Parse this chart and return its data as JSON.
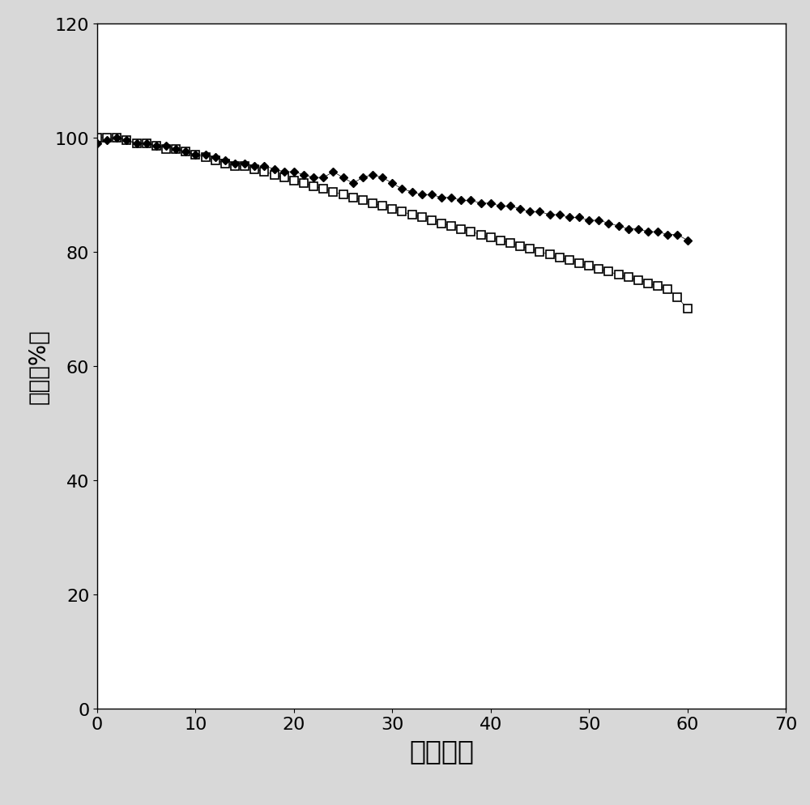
{
  "title": "",
  "xlabel": "循环次数",
  "ylabel": "容量（%）",
  "xlim": [
    0,
    70
  ],
  "ylim": [
    0,
    120
  ],
  "xticks": [
    0,
    10,
    20,
    30,
    40,
    50,
    60,
    70
  ],
  "yticks": [
    0,
    20,
    40,
    60,
    80,
    100,
    120
  ],
  "fig_facecolor": "#d8d8d8",
  "ax_facecolor": "#ffffff",
  "series1_x": [
    0,
    1,
    2,
    3,
    4,
    5,
    6,
    7,
    8,
    9,
    10,
    11,
    12,
    13,
    14,
    15,
    16,
    17,
    18,
    19,
    20,
    21,
    22,
    23,
    24,
    25,
    26,
    27,
    28,
    29,
    30,
    31,
    32,
    33,
    34,
    35,
    36,
    37,
    38,
    39,
    40,
    41,
    42,
    43,
    44,
    45,
    46,
    47,
    48,
    49,
    50,
    51,
    52,
    53,
    54,
    55,
    56,
    57,
    58,
    59,
    60
  ],
  "series1_y": [
    100,
    100,
    100,
    99.5,
    99,
    99,
    98.5,
    98,
    98,
    97.5,
    97,
    96.5,
    96,
    95.5,
    95,
    95,
    94.5,
    94,
    93.5,
    93,
    92.5,
    92,
    91.5,
    91,
    90.5,
    90,
    89.5,
    89,
    88.5,
    88,
    87.5,
    87,
    86.5,
    86,
    85.5,
    85,
    84.5,
    84,
    83.5,
    83,
    82.5,
    82,
    81.5,
    81,
    80.5,
    80,
    79.5,
    79,
    78.5,
    78,
    77.5,
    77,
    76.5,
    76,
    75.5,
    75,
    74.5,
    74,
    73.5,
    72,
    70
  ],
  "series2_x": [
    0,
    1,
    2,
    3,
    4,
    5,
    6,
    7,
    8,
    9,
    10,
    11,
    12,
    13,
    14,
    15,
    16,
    17,
    18,
    19,
    20,
    21,
    22,
    23,
    24,
    25,
    26,
    27,
    28,
    29,
    30,
    31,
    32,
    33,
    34,
    35,
    36,
    37,
    38,
    39,
    40,
    41,
    42,
    43,
    44,
    45,
    46,
    47,
    48,
    49,
    50,
    51,
    52,
    53,
    54,
    55,
    56,
    57,
    58,
    59,
    60
  ],
  "series2_y": [
    99,
    99.5,
    100,
    99.5,
    99,
    99,
    98.5,
    98.5,
    98,
    97.5,
    97,
    97,
    96.5,
    96,
    95.5,
    95.5,
    95,
    95,
    94.5,
    94,
    94,
    93.5,
    93,
    93,
    94,
    93,
    92,
    93,
    93.5,
    93,
    92,
    91,
    90.5,
    90,
    90,
    89.5,
    89.5,
    89,
    89,
    88.5,
    88.5,
    88,
    88,
    87.5,
    87,
    87,
    86.5,
    86.5,
    86,
    86,
    85.5,
    85.5,
    85,
    84.5,
    84,
    84,
    83.5,
    83.5,
    83,
    83,
    82
  ],
  "xlabel_fontsize": 24,
  "ylabel_fontsize": 20,
  "tick_fontsize": 16
}
